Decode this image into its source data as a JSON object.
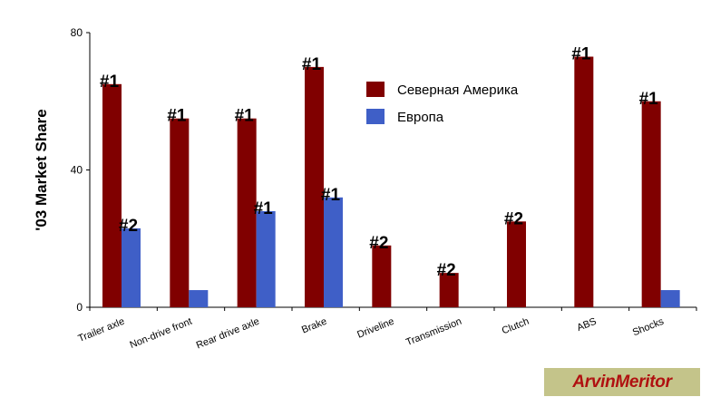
{
  "chart_data": {
    "type": "bar",
    "ylabel": "'03 Market Share",
    "ylim": [
      0,
      80
    ],
    "yticks": [
      "0",
      "40",
      "80"
    ],
    "categories": [
      "Trailer axle",
      "Non-drive front",
      "Rear drive axle",
      "Brake",
      "Driveline",
      "Transmission",
      "Clutch",
      "ABS",
      "Shocks"
    ],
    "series": [
      {
        "name": "Северная Америка",
        "color": "#800000",
        "values": [
          65,
          55,
          55,
          70,
          18,
          10,
          25,
          73,
          60
        ],
        "labels": [
          "#1",
          "#1",
          "#1",
          "#1",
          "#2",
          "#2",
          "#2",
          "#1",
          "#1"
        ]
      },
      {
        "name": "Европа",
        "color": "#3f5fc7",
        "values": [
          23,
          5,
          28,
          32,
          null,
          null,
          null,
          null,
          5
        ],
        "labels": [
          "#2",
          "",
          "#1",
          "#1",
          "",
          "",
          "",
          "",
          ""
        ]
      }
    ],
    "legend_position": "top-center"
  },
  "logo": {
    "text": "ArvinMeritor"
  }
}
